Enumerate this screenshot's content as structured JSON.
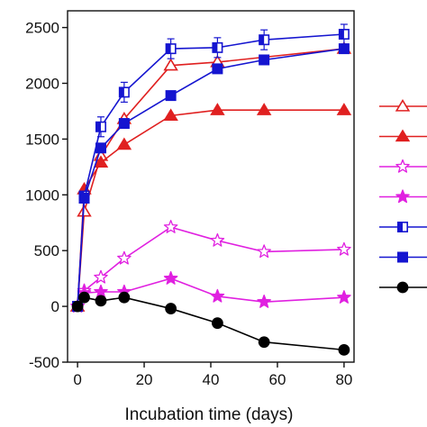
{
  "chart_data": {
    "type": "line",
    "title": "",
    "xlabel": "Incubation time (days)",
    "ylabel": "",
    "xlim": [
      -3,
      83
    ],
    "ylim": [
      -500,
      2650
    ],
    "xticks": [
      0,
      20,
      40,
      60,
      80
    ],
    "yticks": [
      -500,
      0,
      500,
      1000,
      1500,
      2000,
      2500
    ],
    "grid": false,
    "legend": "right, outside plot area (labels not shown)",
    "series": [
      {
        "color": "#e02020",
        "marker": "triangle",
        "fill": "open",
        "x": [
          0,
          2,
          7,
          14,
          28,
          42,
          80
        ],
        "y": [
          0,
          850,
          1350,
          1680,
          2160,
          2190,
          2310
        ]
      },
      {
        "color": "#e02020",
        "marker": "triangle",
        "fill": "filled",
        "x": [
          0,
          2,
          7,
          14,
          28,
          42,
          56,
          80
        ],
        "y": [
          0,
          1050,
          1290,
          1450,
          1710,
          1760,
          1760,
          1760
        ]
      },
      {
        "color": "#e020e0",
        "marker": "star",
        "fill": "open",
        "x": [
          0,
          2,
          7,
          14,
          28,
          42,
          56,
          80
        ],
        "y": [
          0,
          140,
          260,
          430,
          710,
          590,
          490,
          510
        ]
      },
      {
        "color": "#e020e0",
        "marker": "star",
        "fill": "filled",
        "x": [
          0,
          2,
          7,
          14,
          28,
          42,
          56,
          80
        ],
        "y": [
          0,
          120,
          130,
          130,
          250,
          90,
          40,
          80
        ]
      },
      {
        "color": "#1515d0",
        "marker": "square",
        "fill": "half",
        "x": [
          0,
          2,
          7,
          14,
          28,
          42,
          56,
          80
        ],
        "y": [
          0,
          990,
          1610,
          1920,
          2310,
          2320,
          2390,
          2440
        ]
      },
      {
        "color": "#1515d0",
        "marker": "square",
        "fill": "filled",
        "x": [
          0,
          2,
          7,
          14,
          28,
          42,
          56,
          80
        ],
        "y": [
          0,
          970,
          1420,
          1640,
          1890,
          2130,
          2210,
          2310
        ]
      },
      {
        "color": "#000000",
        "marker": "circle",
        "fill": "filled",
        "x": [
          0,
          2,
          7,
          14,
          28,
          42,
          56,
          80
        ],
        "y": [
          0,
          80,
          50,
          80,
          -20,
          -150,
          -320,
          -390
        ]
      }
    ]
  }
}
